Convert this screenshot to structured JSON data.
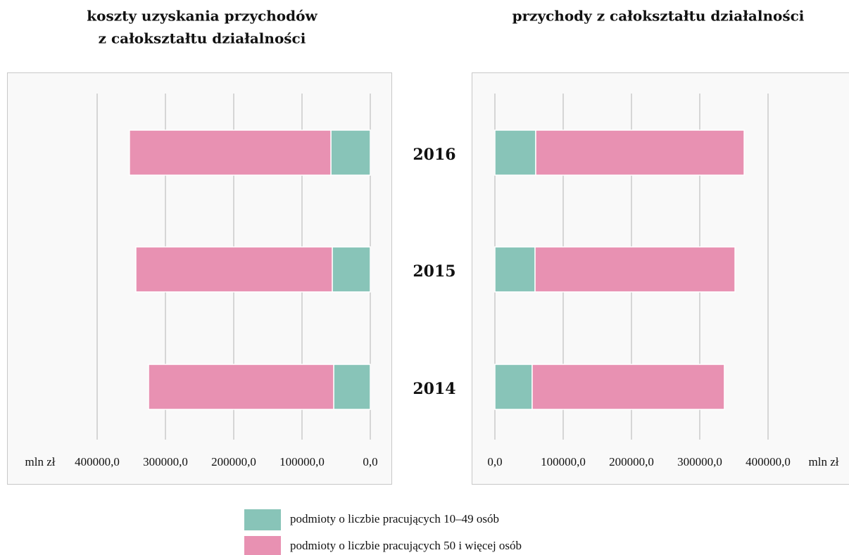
{
  "chart_data": {
    "type": "bar",
    "orientation": "horizontal",
    "stacked": true,
    "categories": [
      "2016",
      "2015",
      "2014"
    ],
    "series": [
      {
        "name": "podmioty o liczbie pracujących 10–49 osób",
        "color": "#88c4b8"
      },
      {
        "name": "podmioty o liczbie pracujących 50 i więcej osób",
        "color": "#e891b2"
      }
    ],
    "panels": [
      {
        "title": [
          "koszty uzyskania przychodów",
          "z całokształtu działalności"
        ],
        "direction": "left",
        "xlabel": "mln zł",
        "xlim": [
          0,
          400000
        ],
        "xticks": [
          {
            "value": 0,
            "label": "0,0"
          },
          {
            "value": 100000,
            "label": "100000,0"
          },
          {
            "value": 200000,
            "label": "200000,0"
          },
          {
            "value": 300000,
            "label": "300000,0"
          },
          {
            "value": 400000,
            "label": "400000,0"
          }
        ],
        "values": [
          [
            57700,
            55700,
            53600
          ],
          [
            295000,
            287600,
            271100
          ]
        ]
      },
      {
        "title": [
          "przychody z całokształtu działalności"
        ],
        "direction": "right",
        "xlabel": "mln zł",
        "xlim": [
          0,
          400000
        ],
        "xticks": [
          {
            "value": 0,
            "label": "0,0"
          },
          {
            "value": 100000,
            "label": "100000,0"
          },
          {
            "value": 200000,
            "label": "200000,0"
          },
          {
            "value": 300000,
            "label": "300000,0"
          },
          {
            "value": 400000,
            "label": "400000,0"
          }
        ],
        "values": [
          [
            59800,
            58800,
            54600
          ],
          [
            305200,
            292800,
            281400
          ]
        ]
      }
    ]
  }
}
